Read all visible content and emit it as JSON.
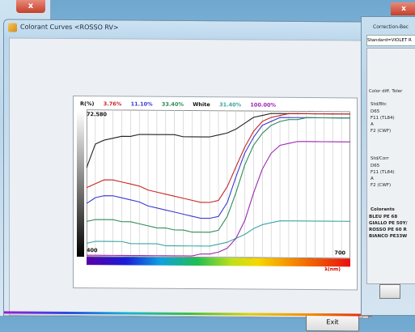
{
  "background_window": {
    "close_glyph": "x"
  },
  "main_window": {
    "title": "Colorant Curves <ROSSO RV>",
    "exit_label": "Exit"
  },
  "chart_data": {
    "type": "line",
    "legend_label": "R(%)",
    "legend": [
      {
        "text": "3.76%",
        "color": "#c62828"
      },
      {
        "text": "11.10%",
        "color": "#3b3bd1"
      },
      {
        "text": "33.40%",
        "color": "#2e8b57"
      },
      {
        "text": "White",
        "color": "#111111"
      },
      {
        "text": "31.40%",
        "color": "#3aa6a0"
      },
      {
        "text": "100.00%",
        "color": "#9c27b0"
      }
    ],
    "y_top_label": "72.580",
    "x_min_label": "400",
    "x_max_label": "700",
    "unit_label": "λ(nm)",
    "xlim": [
      400,
      700
    ],
    "ylim": [
      0,
      72.58
    ],
    "x": [
      400,
      410,
      420,
      430,
      440,
      450,
      460,
      470,
      480,
      490,
      500,
      510,
      520,
      530,
      540,
      550,
      560,
      570,
      580,
      590,
      600,
      610,
      620,
      630,
      640,
      650,
      660,
      670,
      680,
      690,
      700
    ],
    "series": [
      {
        "name": "White",
        "color": "#222222",
        "values": [
          44,
          56,
          58,
          59,
          60,
          60,
          61,
          61,
          61,
          61,
          61,
          60,
          60,
          60,
          60,
          61,
          62,
          64,
          67,
          70,
          71,
          72,
          72,
          72,
          72,
          72,
          72,
          72,
          72,
          72,
          72
        ]
      },
      {
        "name": "3.76%",
        "color": "#c62828",
        "values": [
          34,
          36,
          38,
          38,
          37,
          36,
          35,
          33,
          32,
          31,
          30,
          29,
          28,
          27,
          27,
          28,
          35,
          45,
          55,
          63,
          68,
          70,
          71,
          72,
          72,
          72,
          72,
          72,
          72,
          72,
          72
        ]
      },
      {
        "name": "11.10%",
        "color": "#3b3bd1",
        "values": [
          26,
          29,
          30,
          30,
          29,
          28,
          27,
          25,
          24,
          23,
          22,
          21,
          20,
          19,
          19,
          20,
          27,
          40,
          52,
          60,
          66,
          68,
          70,
          70,
          70,
          70,
          70,
          70,
          70,
          70,
          70
        ]
      },
      {
        "name": "33.40%",
        "color": "#2e8b57",
        "values": [
          17,
          18,
          18,
          18,
          17,
          17,
          16,
          15,
          14,
          14,
          13,
          13,
          12,
          12,
          12,
          13,
          20,
          32,
          46,
          56,
          62,
          66,
          68,
          69,
          69,
          70,
          70,
          70,
          70,
          70,
          70
        ]
      },
      {
        "name": "31.40%",
        "color": "#3aa6a0",
        "values": [
          6,
          7,
          7,
          7,
          7,
          6,
          6,
          6,
          6,
          5,
          5,
          5,
          5,
          5,
          5,
          6,
          7,
          9,
          11,
          14,
          16,
          17,
          18,
          18,
          18,
          18,
          18,
          18,
          18,
          18,
          18
        ]
      },
      {
        "name": "100.00%",
        "color": "#9c27b0",
        "values": [
          0,
          0,
          0,
          0,
          0,
          0,
          0,
          0,
          0,
          0,
          0,
          0,
          0,
          1,
          1,
          2,
          4,
          9,
          18,
          32,
          44,
          52,
          56,
          57,
          58,
          58,
          58,
          58,
          58,
          58,
          58
        ]
      }
    ]
  },
  "right_window": {
    "title": "Correction-Bec",
    "close_glyph": "x",
    "standard": "Standard=VIOLET R",
    "color_diff_label": "Color diff. Toler",
    "box1_header": "Std/Btc",
    "box1_items": [
      "D65",
      "F11 (TL84)",
      "A",
      "F2 (CWF)"
    ],
    "box2_header": "Std/Corr",
    "box2_items": [
      "D65",
      "F11 (TL84)",
      "A",
      "F2 (CWF)"
    ],
    "colorants_header": "Colorants",
    "colorants": [
      "BLEU PE 68",
      "GIALLO PE 50Y/",
      "ROSSO PE 60 R",
      "BIANCO PE33W"
    ]
  }
}
